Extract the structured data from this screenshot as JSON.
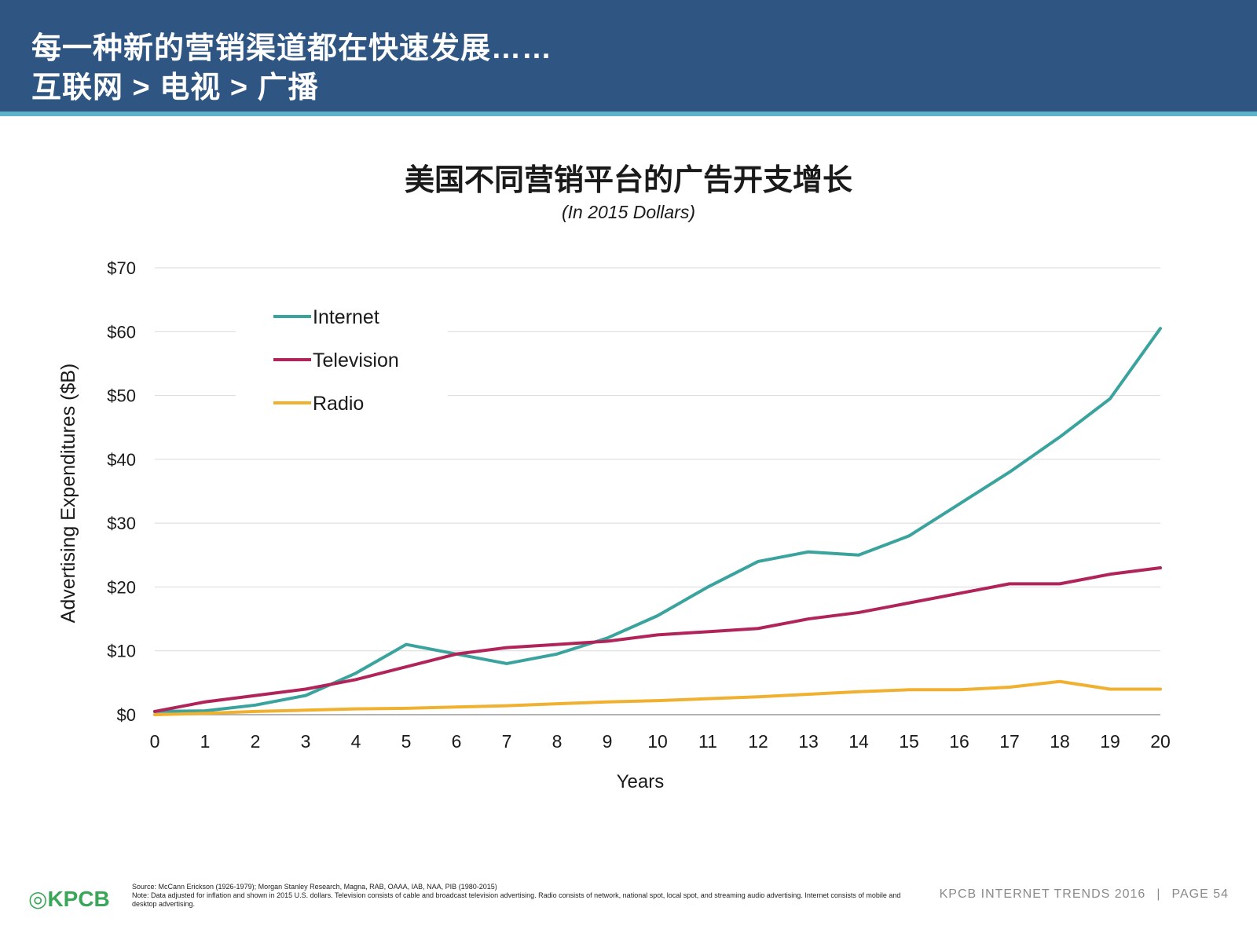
{
  "header": {
    "line1": "每一种新的营销渠道都在快速发展……",
    "line2": "互联网 > 电视 > 广播"
  },
  "chart_data": {
    "type": "line",
    "title": "美国不同营销平台的广告开支增长",
    "subtitle": "(In 2015 Dollars)",
    "xlabel": "Years",
    "ylabel": "Advertising Expenditures ($B)",
    "x": [
      0,
      1,
      2,
      3,
      4,
      5,
      6,
      7,
      8,
      9,
      10,
      11,
      12,
      13,
      14,
      15,
      16,
      17,
      18,
      19,
      20
    ],
    "xlim": [
      0,
      20
    ],
    "ylim": [
      0,
      70
    ],
    "yticks": [
      0,
      10,
      20,
      30,
      40,
      50,
      60,
      70
    ],
    "ytick_labels": [
      "$0",
      "$10",
      "$20",
      "$30",
      "$40",
      "$50",
      "$60",
      "$70"
    ],
    "grid": true,
    "legend_position": "top-left",
    "series": [
      {
        "name": "Internet",
        "color": "#3aa39e",
        "values": [
          0.5,
          0.6,
          1.5,
          3,
          6.5,
          11,
          9.5,
          8,
          9.5,
          12,
          15.5,
          20,
          24,
          25.5,
          25,
          28,
          33,
          38,
          43.5,
          49.5,
          60.5
        ]
      },
      {
        "name": "Television",
        "color": "#b0245a",
        "values": [
          0.5,
          2,
          3,
          4,
          5.5,
          7.5,
          9.5,
          10.5,
          11,
          11.5,
          12.5,
          13,
          13.5,
          15,
          16,
          17.5,
          19,
          20.5,
          20.5,
          22,
          23
        ]
      },
      {
        "name": "Radio",
        "color": "#f0b030",
        "values": [
          0,
          0.2,
          0.5,
          0.7,
          0.9,
          1,
          1.2,
          1.4,
          1.7,
          2,
          2.2,
          2.5,
          2.8,
          3.2,
          3.6,
          3.9,
          3.9,
          4.3,
          5.2,
          4,
          4
        ]
      }
    ]
  },
  "footer": {
    "logo": "KPCB",
    "source": "Source: McCann Erickson (1926-1979); Morgan Stanley Research, Magna, RAB, OAAA, IAB, NAA, PIB (1980-2015)",
    "note": "Note: Data adjusted for inflation and shown in 2015 U.S. dollars. Television consists of cable and broadcast television advertising. Radio consists of network, national spot, local spot, and streaming audio advertising. Internet consists of mobile and desktop advertising.",
    "brand": "KPCB INTERNET TRENDS 2016",
    "page": "PAGE 54"
  }
}
